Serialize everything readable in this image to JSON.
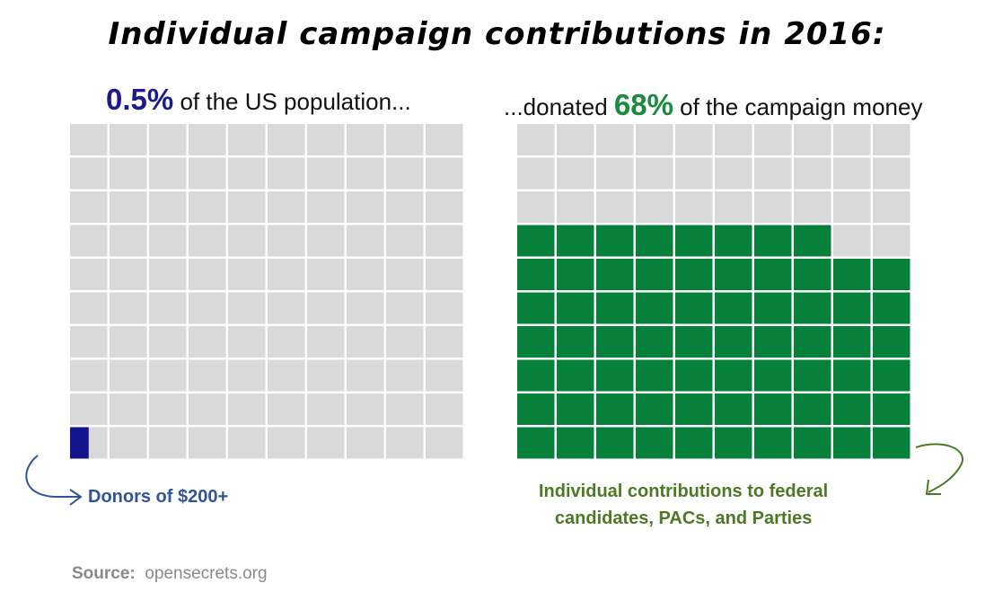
{
  "title": "Individual campaign contributions in 2016:",
  "left_caption": {
    "value": "0.5%",
    "text": " of the US population..."
  },
  "right_caption": {
    "prefix": "...donated ",
    "value": "68%",
    "text": " of the campaign money"
  },
  "left_note": "Donors of $200+",
  "right_note": {
    "line1": "Individual contributions to federal",
    "line2": "candidates, PACs, and Parties"
  },
  "source": {
    "label": "Source:",
    "text": "opensecrets.org"
  },
  "colors": {
    "empty": "#d9d9d9",
    "blue": "#13138c",
    "green": "#07803c",
    "blue_text": "#2f5497",
    "green_text": "#4a7a23"
  },
  "chart_data": [
    {
      "type": "waffle",
      "grid": {
        "rows": 10,
        "cols": 10
      },
      "percent_filled": 0.5,
      "fill_color": "#13138c",
      "empty_color": "#d9d9d9",
      "fill_order": "bottom-left, left-to-right, bottom-to-top",
      "label": "0.5% of the US population...",
      "annotation": "Donors of $200+"
    },
    {
      "type": "waffle",
      "grid": {
        "rows": 10,
        "cols": 10
      },
      "percent_filled": 68,
      "fill_color": "#07803c",
      "empty_color": "#d9d9d9",
      "fill_order": "bottom-left, left-to-right, bottom-to-top",
      "label": "...donated 68% of the campaign money",
      "annotation": "Individual contributions to federal candidates, PACs, and Parties"
    }
  ]
}
